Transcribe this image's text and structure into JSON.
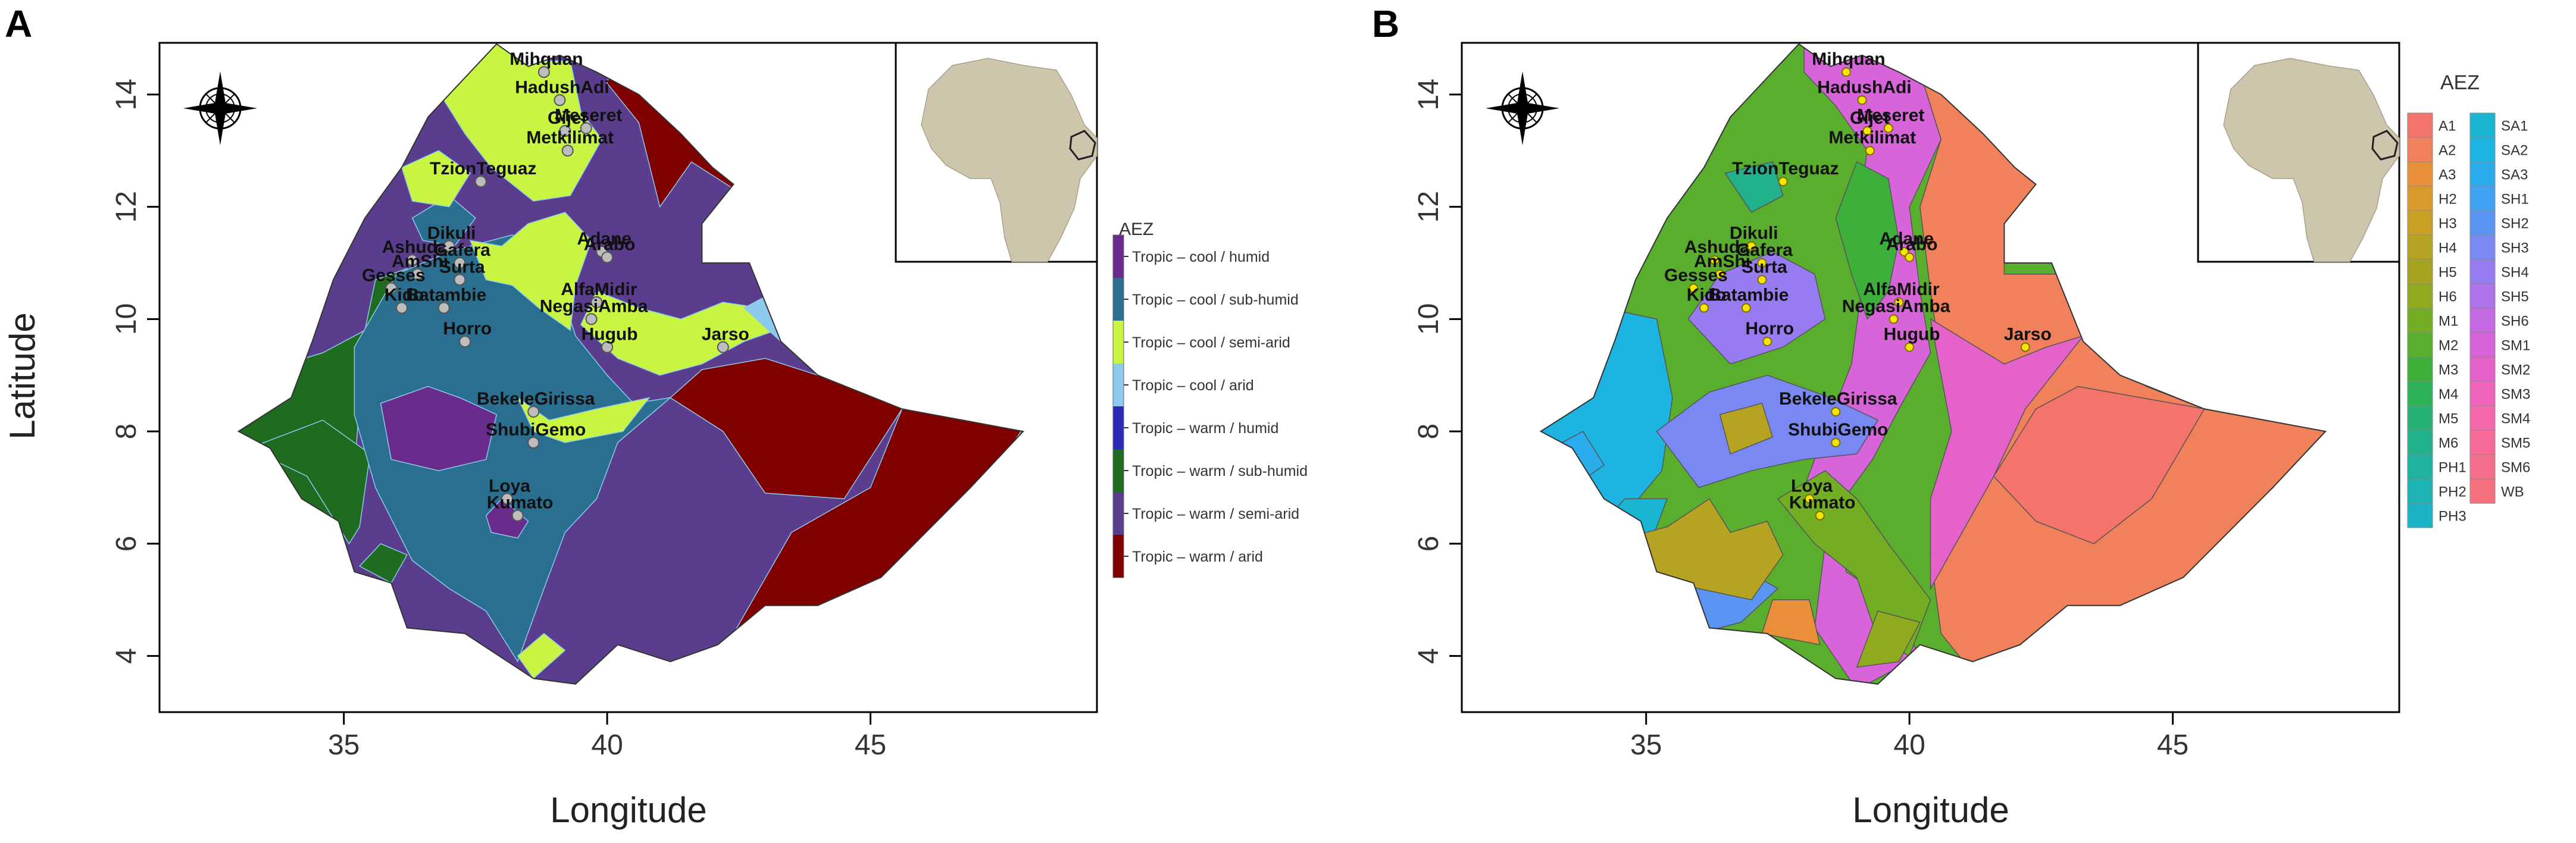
{
  "panels": [
    {
      "letter": "A",
      "xlabel": "Longitude",
      "ylabel": "Latitude",
      "xticks": [
        "35",
        "40",
        "45"
      ],
      "yticks": [
        "4",
        "6",
        "8",
        "10",
        "12",
        "14"
      ],
      "legend_title": "AEZ",
      "legend_items": [
        {
          "label": "Tropic – cool / humid",
          "color": "#6a2c8c"
        },
        {
          "label": "Tropic – cool / sub-humid",
          "color": "#2a6f8f"
        },
        {
          "label": "Tropic – cool / semi-arid",
          "color": "#c8f542"
        },
        {
          "label": "Tropic – cool / arid",
          "color": "#8ec9ee"
        },
        {
          "label": "Tropic – warm / humid",
          "color": "#2a2ab8"
        },
        {
          "label": "Tropic – warm / sub-humid",
          "color": "#1f6b1f"
        },
        {
          "label": "Tropic – warm / semi-arid",
          "color": "#5a3d8c"
        },
        {
          "label": "Tropic – warm / arid",
          "color": "#800000"
        }
      ],
      "sites": [
        {
          "name": "Mihquan",
          "lon": 38.8,
          "lat": 14.4
        },
        {
          "name": "HadushAdi",
          "lon": 39.1,
          "lat": 13.9
        },
        {
          "name": "Gijet",
          "lon": 39.2,
          "lat": 13.35
        },
        {
          "name": "Meseret",
          "lon": 39.6,
          "lat": 13.4
        },
        {
          "name": "Metkilimat",
          "lon": 39.25,
          "lat": 13.0
        },
        {
          "name": "TzionTeguaz",
          "lon": 37.6,
          "lat": 12.45
        },
        {
          "name": "Ashuda",
          "lon": 36.3,
          "lat": 11.05
        },
        {
          "name": "Dikuli",
          "lon": 37.0,
          "lat": 11.3
        },
        {
          "name": "AmShi",
          "lon": 36.4,
          "lat": 10.8
        },
        {
          "name": "Gafera",
          "lon": 37.2,
          "lat": 11.0
        },
        {
          "name": "Gesses",
          "lon": 35.9,
          "lat": 10.55
        },
        {
          "name": "Surta",
          "lon": 37.2,
          "lat": 10.7
        },
        {
          "name": "Kido",
          "lon": 36.1,
          "lat": 10.2
        },
        {
          "name": "Batambie",
          "lon": 36.9,
          "lat": 10.2
        },
        {
          "name": "Adane",
          "lon": 39.9,
          "lat": 11.2
        },
        {
          "name": "Arabo",
          "lon": 40.0,
          "lat": 11.1
        },
        {
          "name": "AlfaMidir",
          "lon": 39.8,
          "lat": 10.3
        },
        {
          "name": "NegasiAmba",
          "lon": 39.7,
          "lat": 10.0
        },
        {
          "name": "Horro",
          "lon": 37.3,
          "lat": 9.6
        },
        {
          "name": "Hugub",
          "lon": 40.0,
          "lat": 9.5
        },
        {
          "name": "Jarso",
          "lon": 42.2,
          "lat": 9.5
        },
        {
          "name": "BekeleGirissa",
          "lon": 38.6,
          "lat": 8.35
        },
        {
          "name": "ShubiGemo",
          "lon": 38.6,
          "lat": 7.8
        },
        {
          "name": "Loya",
          "lon": 38.1,
          "lat": 6.8
        },
        {
          "name": "Kumato",
          "lon": 38.3,
          "lat": 6.5
        }
      ]
    },
    {
      "letter": "B",
      "xlabel": "Longitude",
      "ylabel": "",
      "xticks": [
        "35",
        "40",
        "45"
      ],
      "yticks": [
        "4",
        "6",
        "8",
        "10",
        "12",
        "14"
      ],
      "legend_title": "AEZ",
      "legend_items": [
        {
          "label": "A1",
          "color": "#f4746c"
        },
        {
          "label": "A2",
          "color": "#f0815a"
        },
        {
          "label": "A3",
          "color": "#e98f3a"
        },
        {
          "label": "H2",
          "color": "#d99a2b"
        },
        {
          "label": "H3",
          "color": "#c9a024"
        },
        {
          "label": "H4",
          "color": "#b5a321"
        },
        {
          "label": "H5",
          "color": "#a7a51f"
        },
        {
          "label": "H6",
          "color": "#8faa1f"
        },
        {
          "label": "M1",
          "color": "#73ad23"
        },
        {
          "label": "M2",
          "color": "#5aae2d"
        },
        {
          "label": "M3",
          "color": "#3db03c"
        },
        {
          "label": "M4",
          "color": "#2db258"
        },
        {
          "label": "M5",
          "color": "#25b274"
        },
        {
          "label": "M6",
          "color": "#21b28c"
        },
        {
          "label": "PH1",
          "color": "#1fb2a0"
        },
        {
          "label": "PH2",
          "color": "#1cb3b2"
        },
        {
          "label": "PH3",
          "color": "#1bb4c4"
        },
        {
          "label": "SA1",
          "color": "#19b6d4"
        },
        {
          "label": "SA2",
          "color": "#1db4e2"
        },
        {
          "label": "SA3",
          "color": "#2bacec"
        },
        {
          "label": "SH1",
          "color": "#3fa2f2"
        },
        {
          "label": "SH2",
          "color": "#5b95f4"
        },
        {
          "label": "SH3",
          "color": "#7a88f4"
        },
        {
          "label": "SH4",
          "color": "#977cf1"
        },
        {
          "label": "SH5",
          "color": "#b071ec"
        },
        {
          "label": "SH6",
          "color": "#c569e4"
        },
        {
          "label": "SM1",
          "color": "#d764d9"
        },
        {
          "label": "SM2",
          "color": "#e562cb"
        },
        {
          "label": "SM3",
          "color": "#ef63bb"
        },
        {
          "label": "SM4",
          "color": "#f467aa"
        },
        {
          "label": "SM5",
          "color": "#f66b9a"
        },
        {
          "label": "SM6",
          "color": "#f46d8a"
        },
        {
          "label": "WB",
          "color": "#f56f7c"
        }
      ],
      "sites": [
        {
          "name": "Mihquan",
          "lon": 38.8,
          "lat": 14.4
        },
        {
          "name": "HadushAdi",
          "lon": 39.1,
          "lat": 13.9
        },
        {
          "name": "Gijet",
          "lon": 39.2,
          "lat": 13.35
        },
        {
          "name": "Meseret",
          "lon": 39.6,
          "lat": 13.4
        },
        {
          "name": "Metkilimat",
          "lon": 39.25,
          "lat": 13.0
        },
        {
          "name": "TzionTeguaz",
          "lon": 37.6,
          "lat": 12.45
        },
        {
          "name": "Ashuda",
          "lon": 36.3,
          "lat": 11.05
        },
        {
          "name": "Dikuli",
          "lon": 37.0,
          "lat": 11.3
        },
        {
          "name": "AmShi",
          "lon": 36.4,
          "lat": 10.8
        },
        {
          "name": "Gafera",
          "lon": 37.2,
          "lat": 11.0
        },
        {
          "name": "Gesses",
          "lon": 35.9,
          "lat": 10.55
        },
        {
          "name": "Surta",
          "lon": 37.2,
          "lat": 10.7
        },
        {
          "name": "Kido",
          "lon": 36.1,
          "lat": 10.2
        },
        {
          "name": "Batambie",
          "lon": 36.9,
          "lat": 10.2
        },
        {
          "name": "Adane",
          "lon": 39.9,
          "lat": 11.2
        },
        {
          "name": "Arabo",
          "lon": 40.0,
          "lat": 11.1
        },
        {
          "name": "AlfaMidir",
          "lon": 39.8,
          "lat": 10.3
        },
        {
          "name": "NegasiAmba",
          "lon": 39.7,
          "lat": 10.0
        },
        {
          "name": "Horro",
          "lon": 37.3,
          "lat": 9.6
        },
        {
          "name": "Hugub",
          "lon": 40.0,
          "lat": 9.5
        },
        {
          "name": "Jarso",
          "lon": 42.2,
          "lat": 9.5
        },
        {
          "name": "BekeleGirissa",
          "lon": 38.6,
          "lat": 8.35
        },
        {
          "name": "ShubiGemo",
          "lon": 38.6,
          "lat": 7.8
        },
        {
          "name": "Loya",
          "lon": 38.1,
          "lat": 6.8
        },
        {
          "name": "Kumato",
          "lon": 38.3,
          "lat": 6.5
        }
      ]
    }
  ]
}
